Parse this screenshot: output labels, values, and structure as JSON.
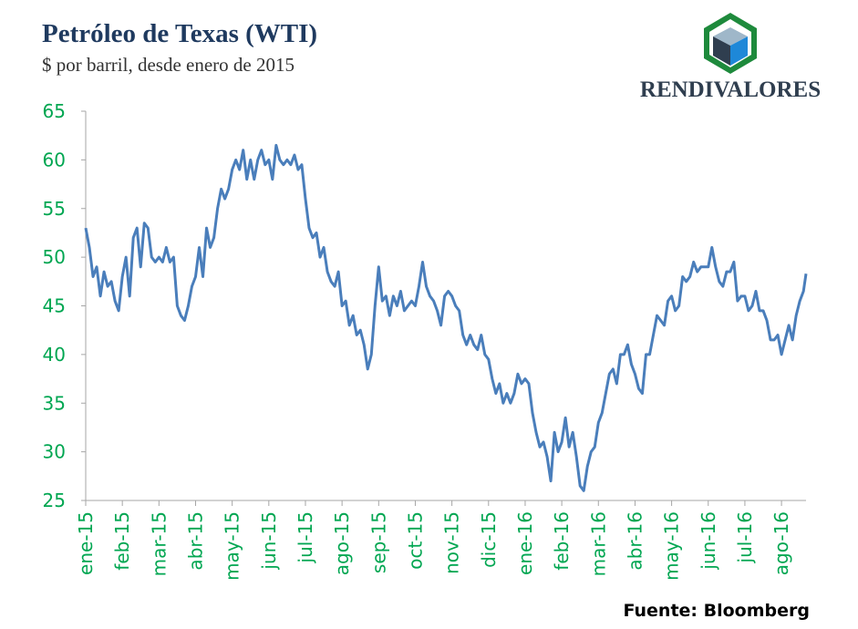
{
  "chart_data": {
    "type": "line",
    "title": "Petróleo de Texas (WTI)",
    "subtitle": "$ por barril, desde enero de 2015",
    "logo_text": "RENDIVALORES",
    "source": "Fuente: Bloomberg",
    "x": [
      0,
      0.1,
      0.2,
      0.3,
      0.4,
      0.5,
      0.6,
      0.7,
      0.8,
      0.9,
      1,
      1.1,
      1.2,
      1.3,
      1.4,
      1.5,
      1.6,
      1.7,
      1.8,
      1.9,
      2,
      2.1,
      2.2,
      2.3,
      2.4,
      2.5,
      2.6,
      2.7,
      2.8,
      2.9,
      3,
      3.1,
      3.2,
      3.3,
      3.4,
      3.5,
      3.6,
      3.7,
      3.8,
      3.9,
      4,
      4.1,
      4.2,
      4.3,
      4.4,
      4.5,
      4.6,
      4.7,
      4.8,
      4.9,
      5,
      5.1,
      5.2,
      5.3,
      5.4,
      5.5,
      5.6,
      5.7,
      5.8,
      5.9,
      6,
      6.1,
      6.2,
      6.3,
      6.4,
      6.5,
      6.6,
      6.7,
      6.8,
      6.9,
      7,
      7.1,
      7.2,
      7.3,
      7.4,
      7.5,
      7.6,
      7.7,
      7.8,
      7.9,
      8,
      8.1,
      8.2,
      8.3,
      8.4,
      8.5,
      8.6,
      8.7,
      8.8,
      8.9,
      9,
      9.1,
      9.2,
      9.3,
      9.4,
      9.5,
      9.6,
      9.7,
      9.8,
      9.9,
      10,
      10.1,
      10.2,
      10.3,
      10.4,
      10.5,
      10.6,
      10.7,
      10.8,
      10.9,
      11,
      11.1,
      11.2,
      11.3,
      11.4,
      11.5,
      11.6,
      11.7,
      11.8,
      11.9,
      12,
      12.1,
      12.2,
      12.3,
      12.4,
      12.5,
      12.6,
      12.7,
      12.8,
      12.9,
      13,
      13.1,
      13.2,
      13.3,
      13.4,
      13.5,
      13.6,
      13.7,
      13.8,
      13.9,
      14,
      14.1,
      14.2,
      14.3,
      14.4,
      14.5,
      14.6,
      14.7,
      14.8,
      14.9,
      15,
      15.1,
      15.2,
      15.3,
      15.4,
      15.5,
      15.6,
      15.7,
      15.8,
      15.9,
      16,
      16.1,
      16.2,
      16.3,
      16.4,
      16.5,
      16.6,
      16.7,
      16.8,
      16.9,
      17,
      17.1,
      17.2,
      17.3,
      17.4,
      17.5,
      17.6,
      17.7,
      17.8,
      17.9,
      18,
      18.1,
      18.2,
      18.3,
      18.4,
      18.5,
      18.6,
      18.7,
      18.8,
      18.9,
      19,
      19.1,
      19.2,
      19.3,
      19.4,
      19.5,
      19.6,
      19.67
    ],
    "series": [
      {
        "name": "WTI",
        "color": "#4a7ebb",
        "values": [
          53,
          51,
          48,
          49,
          46,
          48.5,
          47,
          47.5,
          45.5,
          44.5,
          48,
          50,
          46,
          52,
          53,
          49,
          53.5,
          53,
          50,
          49.5,
          50,
          49.5,
          51,
          49.5,
          50,
          45,
          44,
          43.5,
          45,
          47,
          48,
          51,
          48,
          53,
          51,
          52,
          55,
          57,
          56,
          57,
          59,
          60,
          59,
          61,
          58,
          60,
          58,
          60,
          61,
          59.5,
          60,
          58,
          61.5,
          60,
          59.5,
          60,
          59.5,
          60.5,
          59,
          59.5,
          56,
          53,
          52,
          52.5,
          50,
          51,
          48.5,
          47.5,
          47,
          48.5,
          45,
          45.5,
          43,
          44,
          42,
          42.5,
          41,
          38.5,
          40,
          45,
          49,
          45.5,
          46,
          44,
          46,
          45,
          46.5,
          44.5,
          45,
          45.5,
          45,
          47,
          49.5,
          47,
          46,
          45.5,
          44.5,
          43,
          46,
          46.5,
          46,
          45,
          44.5,
          42,
          41,
          42,
          41,
          40.5,
          42,
          40,
          39.5,
          37.5,
          36,
          37,
          35,
          36,
          35,
          36,
          38,
          37,
          37.5,
          37,
          34,
          32,
          30.5,
          31,
          29.5,
          27,
          32,
          30,
          31,
          33.5,
          30.5,
          32,
          29.5,
          26.5,
          26,
          28.5,
          30,
          30.5,
          33,
          34,
          36,
          38,
          38.5,
          37,
          40,
          40,
          41,
          39,
          38,
          36.5,
          36,
          40,
          40,
          42,
          44,
          43.5,
          43,
          45.5,
          46,
          44.5,
          45,
          48,
          47.5,
          48,
          49.5,
          48.5,
          49,
          49,
          49,
          51,
          49,
          47.5,
          47,
          48.5,
          48.5,
          49.5,
          45.5,
          46,
          46,
          44.5,
          45,
          46.5,
          44.5,
          44.5,
          43.5,
          41.5,
          41.5,
          42,
          40,
          41.5,
          43,
          41.5,
          44,
          45.5,
          46.5,
          48.3
        ]
      }
    ],
    "xlim": [
      0,
      19.67
    ],
    "xticks": [
      {
        "value": 0,
        "label": "ene-15"
      },
      {
        "value": 1,
        "label": "feb-15"
      },
      {
        "value": 2,
        "label": "mar-15"
      },
      {
        "value": 3,
        "label": "abr-15"
      },
      {
        "value": 4,
        "label": "may-15"
      },
      {
        "value": 5,
        "label": "jun-15"
      },
      {
        "value": 6,
        "label": "jul-15"
      },
      {
        "value": 7,
        "label": "ago-15"
      },
      {
        "value": 8,
        "label": "sep-15"
      },
      {
        "value": 9,
        "label": "oct-15"
      },
      {
        "value": 10,
        "label": "nov-15"
      },
      {
        "value": 11,
        "label": "dic-15"
      },
      {
        "value": 12,
        "label": "ene-16"
      },
      {
        "value": 13,
        "label": "feb-16"
      },
      {
        "value": 14,
        "label": "mar-16"
      },
      {
        "value": 15,
        "label": "abr-16"
      },
      {
        "value": 16,
        "label": "may-16"
      },
      {
        "value": 17,
        "label": "jun-16"
      },
      {
        "value": 18,
        "label": "jul-16"
      },
      {
        "value": 19,
        "label": "ago-16"
      }
    ],
    "ylim": [
      25,
      65
    ],
    "yticks": [
      25,
      30,
      35,
      40,
      45,
      50,
      55,
      60,
      65
    ],
    "tick_color": "#00a651",
    "grid": false
  }
}
